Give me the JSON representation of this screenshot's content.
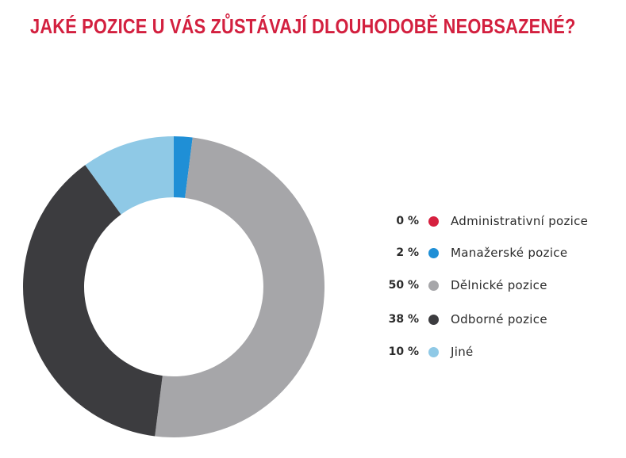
{
  "chart_data": {
    "type": "pie",
    "subtype": "donut",
    "title": "JAKÉ POZICE U VÁS ZŮSTÁVAJÍ DLOUHODOBĚ NEOBSAZENÉ?",
    "legend_position": "right",
    "categories": [
      "Administrativní pozice",
      "Manažerské pozice",
      "Dělnické pozice",
      "Odborné pozice",
      "Jiné"
    ],
    "values": [
      0,
      2,
      50,
      38,
      10
    ],
    "labels": [
      "0 %",
      "2 %",
      "50 %",
      "38 %",
      "10 %"
    ],
    "colors": [
      "#d6203f",
      "#1f8fd6",
      "#a6a6a9",
      "#3c3c3f",
      "#8fc9e6"
    ]
  }
}
